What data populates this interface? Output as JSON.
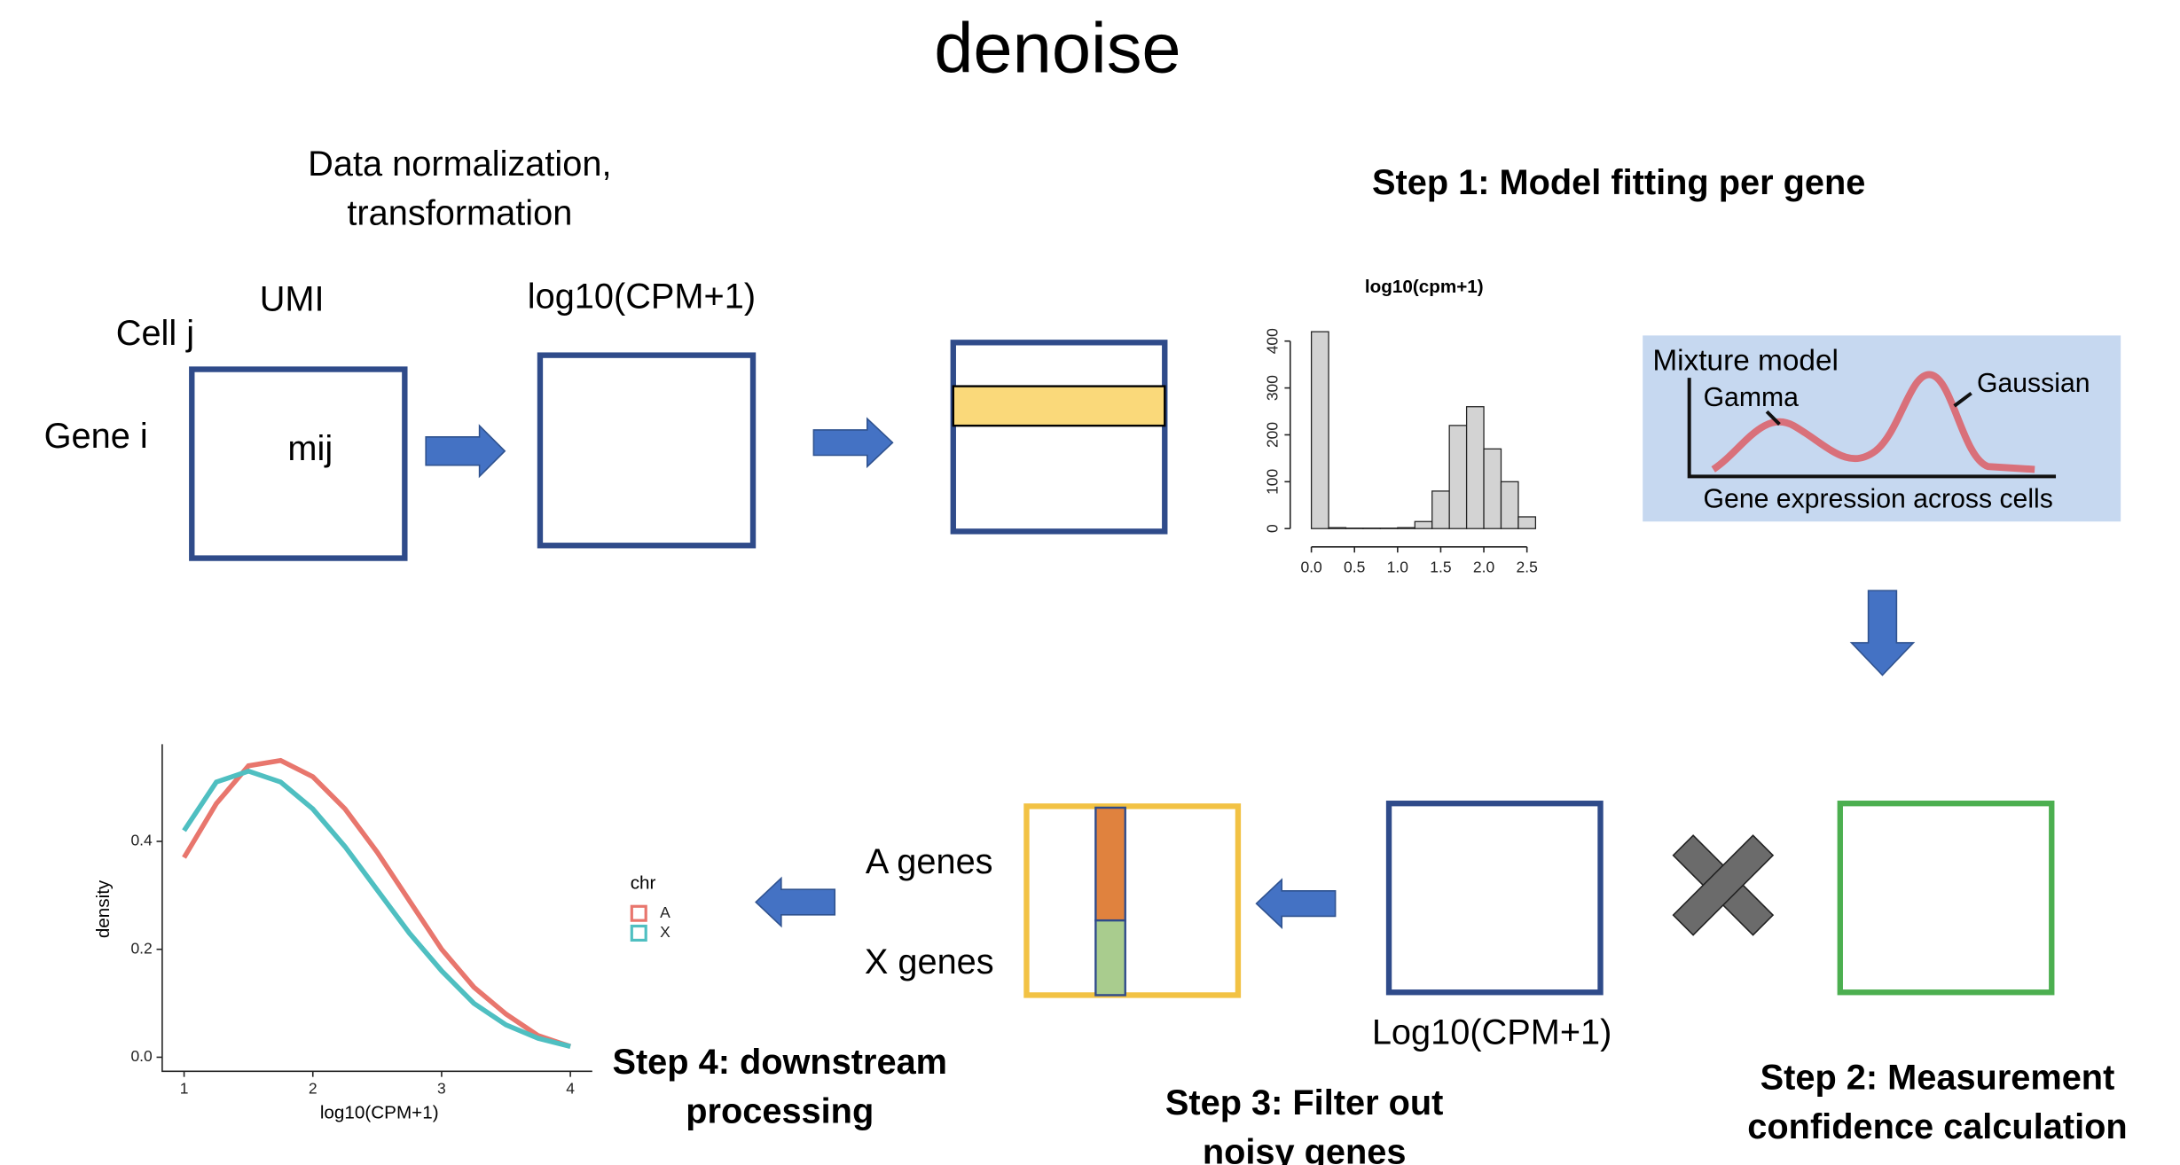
{
  "title": "denoise",
  "normalization": {
    "caption": [
      "Data normalization,",
      "transformation"
    ],
    "umi_label": "UMI",
    "cell_label": "Cell j",
    "gene_label": "Gene i",
    "cell_value": "mij",
    "log_label": "log10(CPM+1)"
  },
  "step1": {
    "label": "Step 1: Model fitting per gene",
    "mixture": {
      "title": "Mixture model",
      "gamma": "Gamma",
      "gaussian": "Gaussian",
      "xlabel": "Gene expression across cells"
    }
  },
  "step2": {
    "label": [
      "Step 2: Measurement",
      "confidence calculation"
    ],
    "log_label": "Log10(CPM+1)"
  },
  "step3": {
    "label": [
      "Step 3: Filter out",
      "noisy genes"
    ],
    "a_genes": "A genes",
    "x_genes": "X genes"
  },
  "step4": {
    "label": [
      "Step 4: downstream",
      "processing"
    ]
  },
  "chart_data": [
    {
      "type": "histogram",
      "title": "log10(cpm+1)",
      "bins": [
        0,
        0.2,
        0.4,
        0.6,
        0.8,
        1.0,
        1.2,
        1.4,
        1.6,
        1.8,
        2.0,
        2.2,
        2.4,
        2.6
      ],
      "values": [
        420,
        2,
        1,
        1,
        1,
        2,
        15,
        80,
        220,
        260,
        170,
        100,
        25
      ],
      "color": "#d3d3d3",
      "xlim": [
        0,
        2.6
      ],
      "ylim": [
        0,
        430
      ],
      "xticks": [
        {
          "value": 0,
          "label": "0.0"
        },
        {
          "value": 0.5,
          "label": "0.5"
        },
        {
          "value": 1,
          "label": "1.0"
        },
        {
          "value": 1.5,
          "label": "1.5"
        },
        {
          "value": 2,
          "label": "2.0"
        },
        {
          "value": 2.5,
          "label": "2.5"
        }
      ],
      "yticks": [
        0,
        100,
        200,
        300,
        400
      ]
    },
    {
      "type": "line",
      "x_label": "log10(CPM+1)",
      "y_label": "density",
      "legend_title": "chr",
      "x": [
        1,
        1.25,
        1.5,
        1.75,
        2,
        2.25,
        2.5,
        2.75,
        3,
        3.25,
        3.5,
        3.75,
        4
      ],
      "series": [
        {
          "name": "A",
          "color": "#e8766d",
          "values": [
            0.37,
            0.47,
            0.54,
            0.55,
            0.52,
            0.46,
            0.38,
            0.29,
            0.2,
            0.13,
            0.08,
            0.04,
            0.02
          ]
        },
        {
          "name": "X",
          "color": "#4fbfc1",
          "values": [
            0.42,
            0.51,
            0.53,
            0.51,
            0.46,
            0.39,
            0.31,
            0.23,
            0.16,
            0.1,
            0.06,
            0.035,
            0.02
          ]
        }
      ],
      "xlim": [
        0.83,
        4.17
      ],
      "ylim": [
        -0.026,
        0.58
      ],
      "xticks": [
        1,
        2,
        3,
        4
      ],
      "yticks": [
        {
          "value": 0,
          "label": "0.0"
        },
        0.2,
        0.4
      ]
    }
  ]
}
